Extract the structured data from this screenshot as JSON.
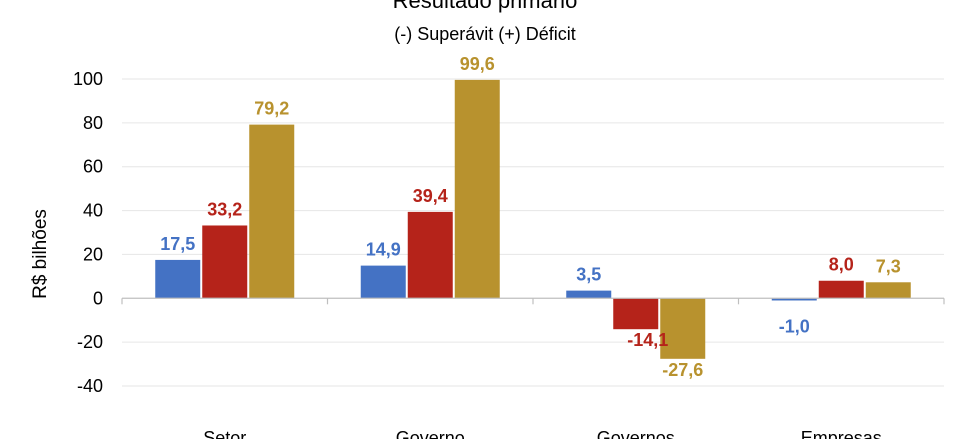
{
  "chart_data": {
    "type": "bar",
    "title": "Resultado primário",
    "subtitle": "(-) Superávit  (+) Déficit",
    "ylabel": "R$ bilhões",
    "xlabel": "",
    "ylim": [
      -40,
      100
    ],
    "yticks": [
      100,
      80,
      60,
      40,
      20,
      0,
      -20,
      -40
    ],
    "grid": true,
    "categories": [
      "Setor",
      "Governo",
      "Governos",
      "Empresas"
    ],
    "series": [
      {
        "color": "#4472C4",
        "values": [
          17.5,
          14.9,
          3.5,
          -1.0
        ],
        "labels": [
          "17,5",
          "14,9",
          "3,5",
          "-1,0"
        ]
      },
      {
        "color": "#B5231A",
        "values": [
          33.2,
          39.4,
          -14.1,
          8.0
        ],
        "labels": [
          "33,2",
          "39,4",
          "-14,1",
          "8,0"
        ]
      },
      {
        "color": "#B8922E",
        "values": [
          79.2,
          99.6,
          -27.6,
          7.3
        ],
        "labels": [
          "79,2",
          "99,6",
          "-27,6",
          "7,3"
        ]
      }
    ]
  }
}
